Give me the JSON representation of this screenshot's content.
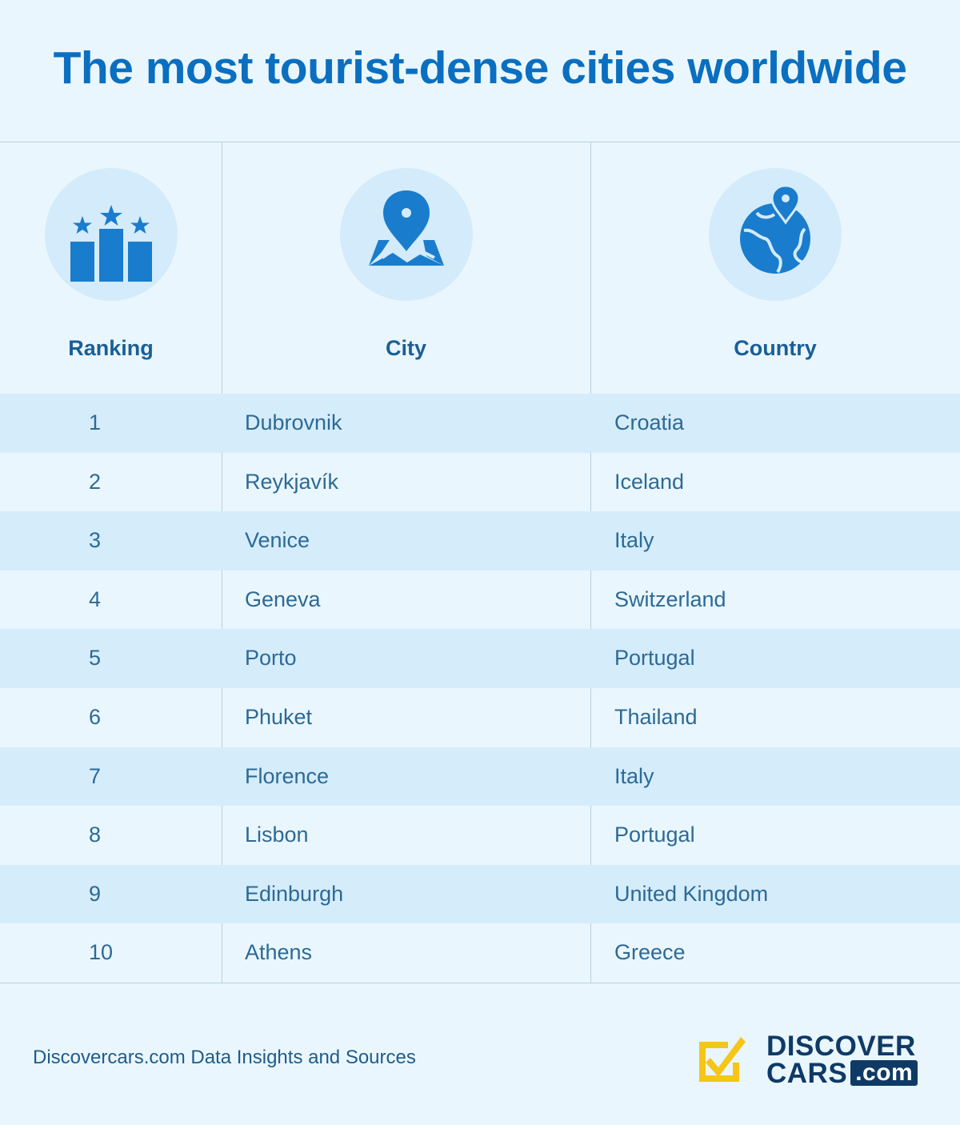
{
  "title": "The most tourist-dense cities worldwide",
  "headers": {
    "ranking": "Ranking",
    "city": "City",
    "country": "Country"
  },
  "header_icons": [
    "ranking-podium-icon",
    "map-pin-icon",
    "globe-pin-icon"
  ],
  "colors": {
    "title": "#0a6fc0",
    "icon": "#1a7ccc",
    "row_shade": "#d5ecfb",
    "background": "#eaf6fd",
    "logo_yellow": "#f5c518",
    "logo_navy": "#0f3a66"
  },
  "chart_data": {
    "type": "table",
    "title": "The most tourist-dense cities worldwide",
    "columns": [
      "Ranking",
      "City",
      "Country"
    ],
    "rows": [
      [
        "1",
        "Dubrovnik",
        "Croatia"
      ],
      [
        "2",
        "Reykjavík",
        "Iceland"
      ],
      [
        "3",
        "Venice",
        "Italy"
      ],
      [
        "4",
        "Geneva",
        "Switzerland"
      ],
      [
        "5",
        "Porto",
        "Portugal"
      ],
      [
        "6",
        "Phuket",
        "Thailand"
      ],
      [
        "7",
        "Florence",
        "Italy"
      ],
      [
        "8",
        "Lisbon",
        "Portugal"
      ],
      [
        "9",
        "Edinburgh",
        "United Kingdom"
      ],
      [
        "10",
        "Athens",
        "Greece"
      ]
    ]
  },
  "footer": {
    "source": "Discovercars.com Data Insights and Sources",
    "logo_line1": "DISCOVER",
    "logo_line2": "CARS",
    "logo_com": ".com"
  }
}
